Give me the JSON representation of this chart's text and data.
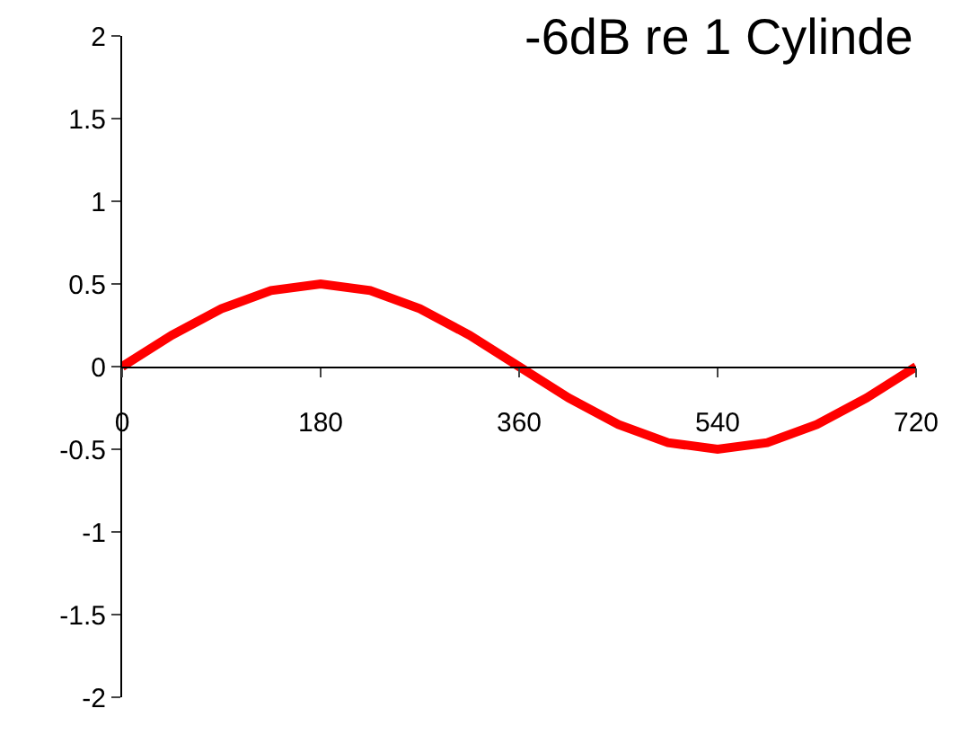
{
  "chart_data": {
    "type": "line",
    "title": "-6dB re 1 Cylinde",
    "x": [
      0,
      45,
      90,
      135,
      180,
      225,
      270,
      315,
      360,
      405,
      450,
      495,
      540,
      585,
      630,
      675,
      720
    ],
    "series": [
      {
        "color": "#ff0000",
        "values": [
          0,
          0.19,
          0.35,
          0.46,
          0.5,
          0.46,
          0.35,
          0.19,
          0,
          -0.19,
          -0.35,
          -0.46,
          -0.5,
          -0.46,
          -0.35,
          -0.19,
          0
        ]
      }
    ],
    "xlim": [
      0,
      720
    ],
    "xticks": [
      0,
      180,
      360,
      540,
      720
    ],
    "ylim": [
      -2,
      2
    ],
    "yticks": [
      -2,
      -1.5,
      -1,
      -0.5,
      0,
      0.5,
      1,
      1.5,
      2
    ],
    "legend": false,
    "marker": "none",
    "line_style": "solid"
  }
}
